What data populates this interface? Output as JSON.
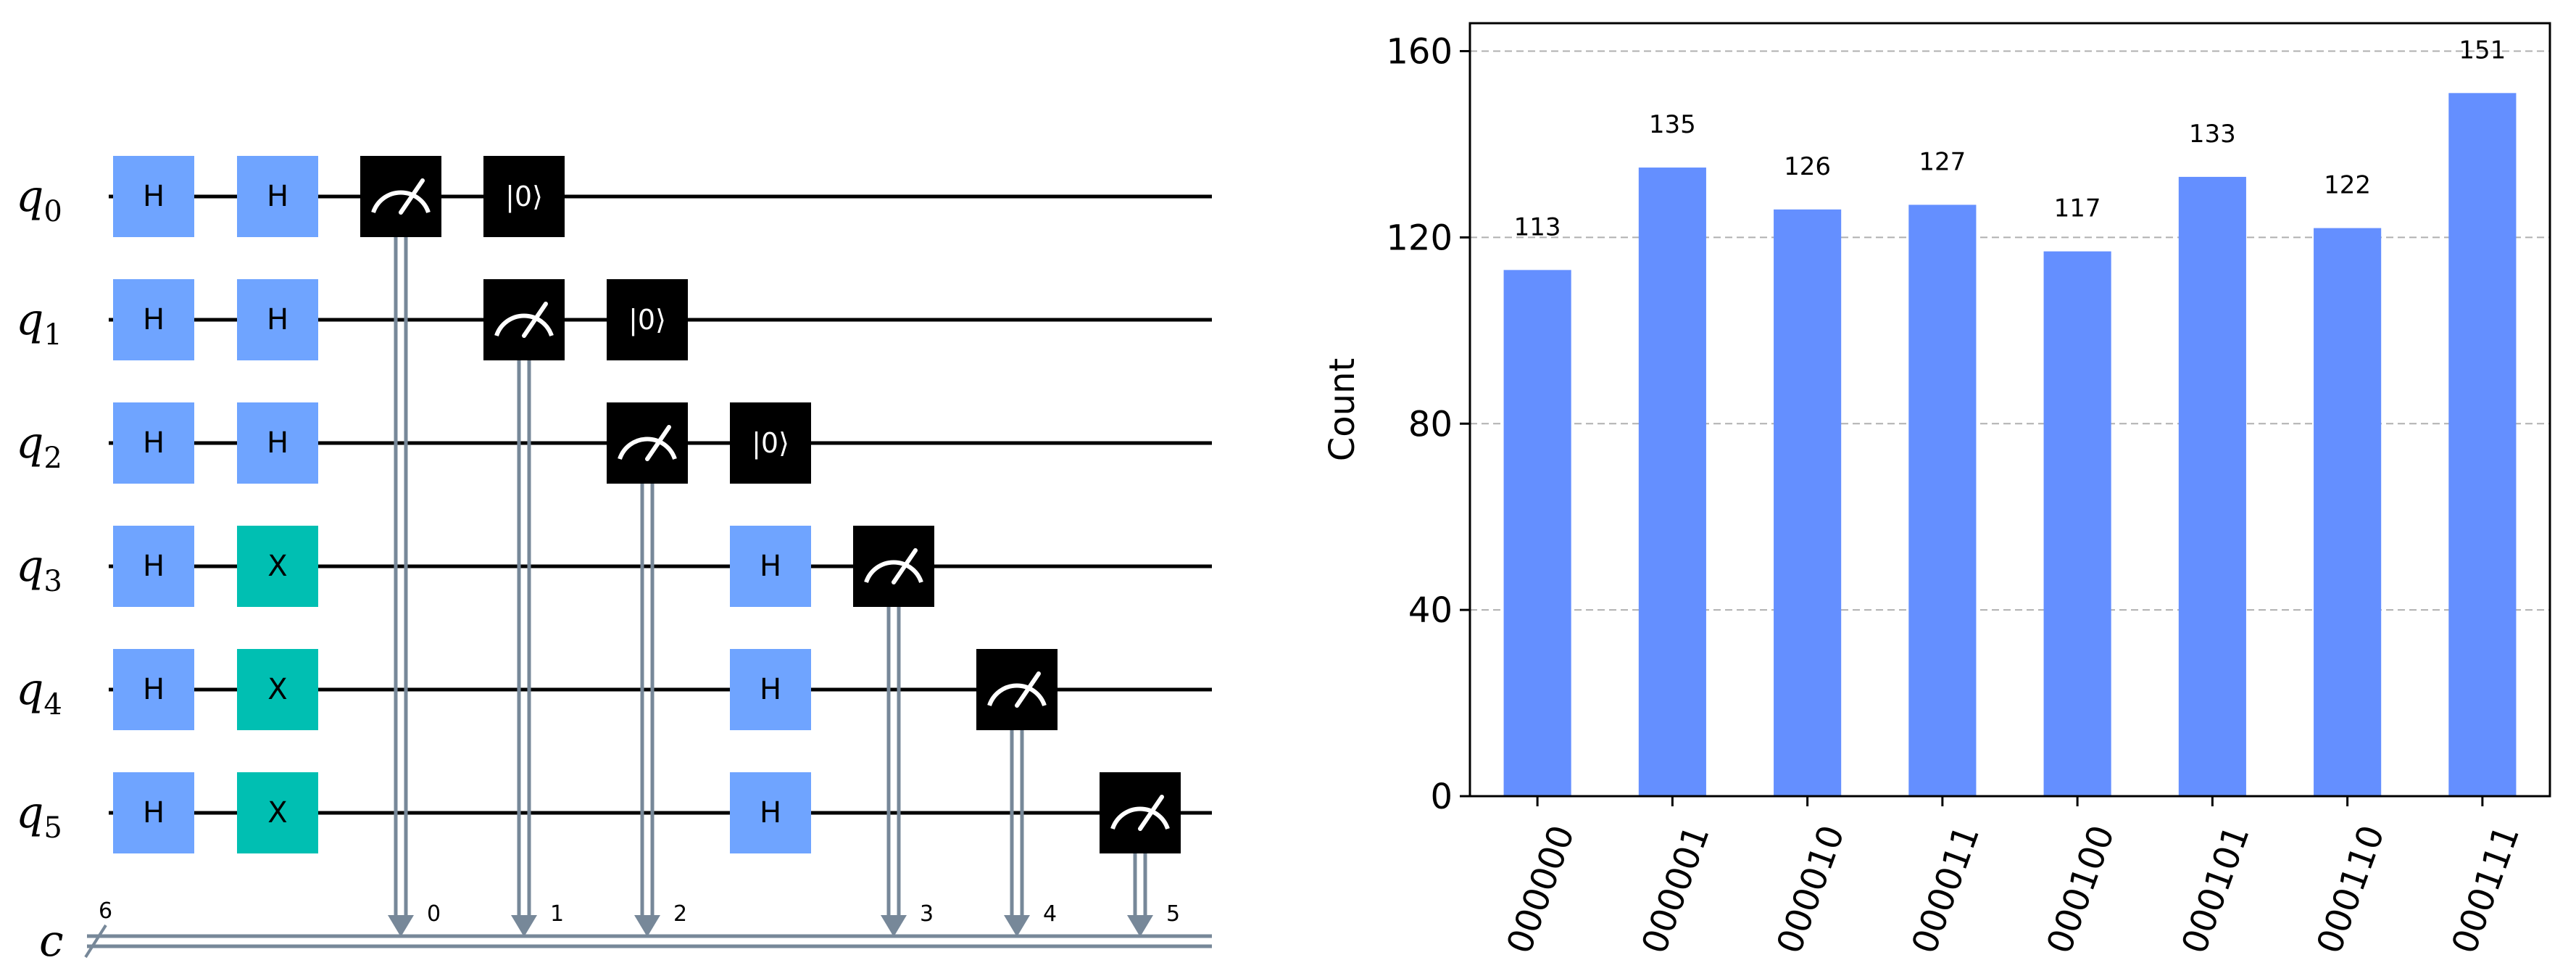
{
  "circuit": {
    "qubits": [
      {
        "base": "q",
        "index": "0"
      },
      {
        "base": "q",
        "index": "1"
      },
      {
        "base": "q",
        "index": "2"
      },
      {
        "base": "q",
        "index": "3"
      },
      {
        "base": "q",
        "index": "4"
      },
      {
        "base": "q",
        "index": "5"
      }
    ],
    "classical_register": {
      "label": "c",
      "size": "6"
    },
    "bit_labels": [
      "0",
      "1",
      "2",
      "3",
      "4",
      "5"
    ],
    "gate_labels": {
      "hadamard": "H",
      "pauli_x": "X",
      "reset": "|0⟩"
    },
    "colors": {
      "hadamard": "#6fa4ff",
      "pauli_x": "#00bfb2",
      "measure": "#000000",
      "reset": "#000000",
      "classical_wire": "#778899",
      "quantum_wire": "#000000"
    },
    "icons": {
      "measure": "meter-icon"
    }
  },
  "chart_data": {
    "type": "bar",
    "categories": [
      "000000",
      "000001",
      "000010",
      "000011",
      "000100",
      "000101",
      "000110",
      "000111"
    ],
    "values": [
      113,
      135,
      126,
      127,
      117,
      133,
      122,
      151
    ],
    "data_labels": [
      "113",
      "135",
      "126",
      "127",
      "117",
      "133",
      "122",
      "151"
    ],
    "title": "",
    "xlabel": "",
    "ylabel": "Count",
    "ylim": [
      0,
      166
    ],
    "yticks": [
      0,
      40,
      80,
      120,
      160
    ],
    "ytick_labels": [
      "0",
      "40",
      "80",
      "120",
      "160"
    ],
    "grid": "horizontal dashed",
    "bar_color": "#648fff"
  }
}
